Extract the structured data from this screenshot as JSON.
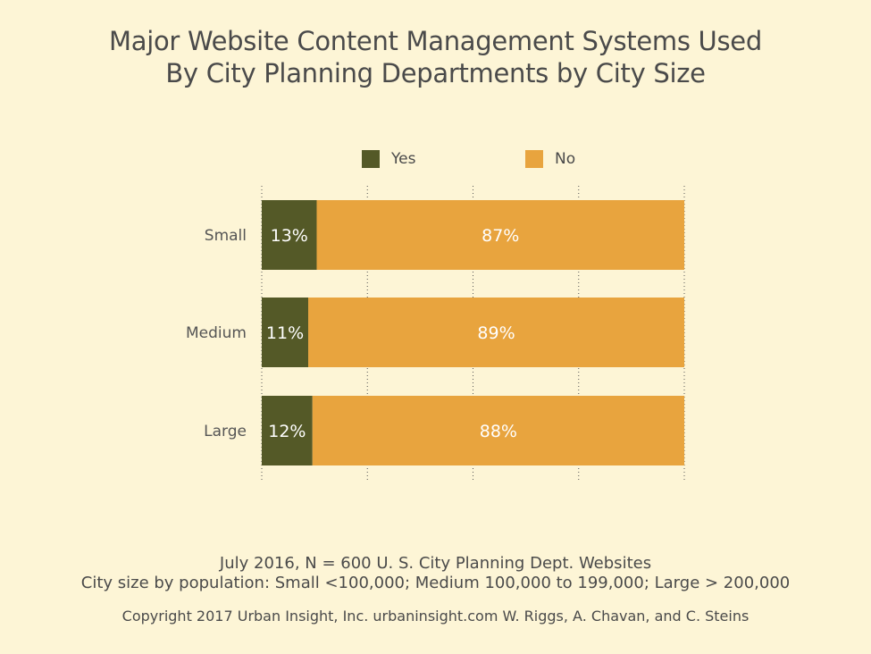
{
  "title_lines": [
    "Major Website Content Management Systems Used",
    "By City Planning Departments by City Size"
  ],
  "legend": [
    {
      "label": "Yes",
      "color": "#545927"
    },
    {
      "label": "No",
      "color": "#e8a43e"
    }
  ],
  "chart_data": {
    "type": "bar",
    "orientation": "horizontal",
    "stacked": true,
    "categories": [
      "Small",
      "Medium",
      "Large"
    ],
    "series": [
      {
        "name": "Yes",
        "values": [
          13,
          11,
          12
        ],
        "labels": [
          "13%",
          "11%",
          "12%"
        ],
        "color": "#545927"
      },
      {
        "name": "No",
        "values": [
          87,
          89,
          88
        ],
        "labels": [
          "87%",
          "89%",
          "88%"
        ],
        "color": "#e8a43e"
      }
    ],
    "xlim": [
      0,
      100
    ],
    "grid": "vertical dotted",
    "legend_position": "top-center"
  },
  "footer": {
    "line1": "July 2016, N = 600 U. S. City Planning Dept. Websites",
    "line2": "City size by population:  Small <100,000; Medium 100,000 to 199,000; Large > 200,000",
    "line3": "Copyright 2017 Urban Insight, Inc. urbaninsight.com  W. Riggs, A. Chavan, and C. Steins"
  }
}
